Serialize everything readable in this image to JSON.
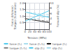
{
  "chart_data": {
    "type": "line",
    "xlabel": "Tension (MPa)",
    "ylabel": "Force (kN/mm)\nTorque (N.mm/mm)",
    "y2label": "Forward slip (%)",
    "x": [
      0,
      10,
      20,
      30,
      40,
      50,
      60,
      70,
      80,
      90,
      100
    ],
    "xlim": [
      0,
      100
    ],
    "xticks": [
      0,
      20,
      40,
      60,
      80,
      100
    ],
    "ylim": [
      0.0,
      2.0
    ],
    "yticks": [
      0.5,
      {
        "value": 1.0,
        "label": "1.0"
      },
      1.5,
      {
        "value": 2.0,
        "label": "2.0"
      }
    ],
    "y2lim": [
      0,
      10
    ],
    "y2ticks": [
      2,
      4,
      6,
      8,
      10
    ],
    "grid": true,
    "legend": "bottom",
    "series": [
      {
        "name": "force (f₁)",
        "color": "#55ccee",
        "line_style": "solid",
        "axis": "y",
        "values": [
          1.3,
          1.26,
          1.22,
          1.18,
          1.14,
          1.1,
          1.06,
          1.02,
          0.98,
          0.94,
          0.9
        ]
      },
      {
        "name": "force (f₁·f₂)",
        "color": "#aaddee",
        "line_style": "dashed",
        "axis": "y",
        "values": [
          1.3,
          1.28,
          1.26,
          1.24,
          1.22,
          1.2,
          1.18,
          1.16,
          1.14,
          1.12,
          1.1
        ]
      },
      {
        "name": "torque (f₁)",
        "color": "#222222",
        "line_style": "solid",
        "axis": "y",
        "values": [
          0.8,
          0.77,
          0.74,
          0.71,
          0.68,
          0.65,
          0.62,
          0.59,
          0.56,
          0.53,
          0.5
        ]
      },
      {
        "name": "torque (f₁·f₂)",
        "color": "#888888",
        "line_style": "dashed",
        "axis": "y",
        "values": [
          0.8,
          0.78,
          0.76,
          0.74,
          0.72,
          0.7,
          0.68,
          0.66,
          0.64,
          0.62,
          0.6
        ]
      },
      {
        "name": "slip (f₁)",
        "color": "#55ccee",
        "line_style": "solid",
        "axis": "y2",
        "values": [
          3.0,
          3.4,
          3.8,
          4.2,
          4.6,
          5.0,
          5.4,
          5.8,
          6.2,
          6.6,
          7.0
        ]
      },
      {
        "name": "slip (f₂)",
        "color": "#aaddee",
        "line_style": "dashed",
        "axis": "y2",
        "values": [
          3.0,
          3.2,
          3.4,
          3.6,
          3.8,
          4.0,
          4.2,
          4.4,
          4.6,
          4.8,
          5.0
        ]
      }
    ]
  }
}
